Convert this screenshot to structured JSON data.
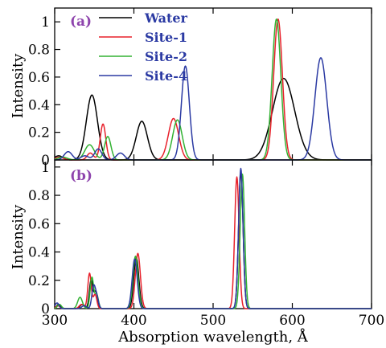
{
  "chart_data": [
    {
      "panel_label": "(a)",
      "type": "line",
      "title": "",
      "xlabel": "",
      "ylabel": "Intensity",
      "xlim": [
        300,
        700
      ],
      "ylim": [
        0,
        1.1
      ],
      "xticks": [
        300,
        400,
        500,
        600,
        700
      ],
      "yticks": [
        0,
        0.2,
        0.4,
        0.6,
        0.8,
        1
      ],
      "ytick_labels": [
        "0",
        "0.2",
        "0.4",
        "0.6",
        "0.8",
        "1"
      ],
      "show_x_tick_labels": false,
      "grid": false,
      "legend": {
        "position": "top-left",
        "entries": [
          "Water",
          "Site-1",
          "Site-2",
          "Site-4"
        ]
      },
      "series": [
        {
          "name": "Water",
          "color": "#000000",
          "peaks": [
            {
              "center": 305,
              "height": 0.03,
              "width": 5
            },
            {
              "center": 347,
              "height": 0.47,
              "width": 7
            },
            {
              "center": 410,
              "height": 0.28,
              "width": 7
            },
            {
              "center": 589,
              "height": 0.59,
              "width": 14
            }
          ]
        },
        {
          "name": "Site-1",
          "color": "#e8212b",
          "peaks": [
            {
              "center": 306,
              "height": 0.02,
              "width": 5
            },
            {
              "center": 345,
              "height": 0.05,
              "width": 4
            },
            {
              "center": 361,
              "height": 0.26,
              "width": 3.5
            },
            {
              "center": 450,
              "height": 0.3,
              "width": 6.5
            },
            {
              "center": 582,
              "height": 1.02,
              "width": 5.5
            }
          ]
        },
        {
          "name": "Site-2",
          "color": "#33b233",
          "peaks": [
            {
              "center": 310,
              "height": 0.02,
              "width": 6
            },
            {
              "center": 344,
              "height": 0.11,
              "width": 6
            },
            {
              "center": 367,
              "height": 0.17,
              "width": 4
            },
            {
              "center": 455,
              "height": 0.29,
              "width": 6
            },
            {
              "center": 580,
              "height": 1.02,
              "width": 5.5
            }
          ]
        },
        {
          "name": "Site-4",
          "color": "#2b3aa3",
          "peaks": [
            {
              "center": 317,
              "height": 0.06,
              "width": 5
            },
            {
              "center": 338,
              "height": 0.03,
              "width": 5
            },
            {
              "center": 355,
              "height": 0.08,
              "width": 4.5
            },
            {
              "center": 383,
              "height": 0.05,
              "width": 5
            },
            {
              "center": 465,
              "height": 0.68,
              "width": 5
            },
            {
              "center": 636,
              "height": 0.74,
              "width": 7.5
            }
          ]
        }
      ]
    },
    {
      "panel_label": "(b)",
      "type": "line",
      "title": "",
      "xlabel": "Absorption wavelength, Å",
      "ylabel": "Intensity",
      "xlim": [
        300,
        700
      ],
      "ylim": [
        0,
        1.05
      ],
      "xticks": [
        300,
        400,
        500,
        600,
        700
      ],
      "xtick_labels": [
        "300",
        "400",
        "500",
        "600",
        "700"
      ],
      "yticks": [
        0,
        0.2,
        0.4,
        0.6,
        0.8,
        1
      ],
      "ytick_labels": [
        "0",
        "0.2",
        "0.4",
        "0.6",
        "0.8",
        "1"
      ],
      "grid": false,
      "series": [
        {
          "name": "Water",
          "color": "#000000",
          "peaks": [
            {
              "center": 305,
              "height": 0.03,
              "width": 2.5
            },
            {
              "center": 335,
              "height": 0.03,
              "width": 3
            },
            {
              "center": 346,
              "height": 0.2,
              "width": 2.2
            },
            {
              "center": 352,
              "height": 0.12,
              "width": 2.2
            },
            {
              "center": 403,
              "height": 0.36,
              "width": 3.2
            },
            {
              "center": 535,
              "height": 0.97,
              "width": 2.8
            }
          ]
        },
        {
          "name": "Site-1",
          "color": "#e8212b",
          "peaks": [
            {
              "center": 304,
              "height": 0.02,
              "width": 2.5
            },
            {
              "center": 334,
              "height": 0.03,
              "width": 3
            },
            {
              "center": 344,
              "height": 0.25,
              "width": 2.2
            },
            {
              "center": 351,
              "height": 0.1,
              "width": 2.2
            },
            {
              "center": 405,
              "height": 0.39,
              "width": 3.2
            },
            {
              "center": 530,
              "height": 0.93,
              "width": 2.8
            }
          ]
        },
        {
          "name": "Site-2",
          "color": "#33b233",
          "peaks": [
            {
              "center": 306,
              "height": 0.03,
              "width": 2.5
            },
            {
              "center": 332,
              "height": 0.08,
              "width": 3
            },
            {
              "center": 347,
              "height": 0.22,
              "width": 2.2
            },
            {
              "center": 353,
              "height": 0.1,
              "width": 2.2
            },
            {
              "center": 402,
              "height": 0.37,
              "width": 3.2
            },
            {
              "center": 537,
              "height": 0.95,
              "width": 2.8
            }
          ]
        },
        {
          "name": "Site-4",
          "color": "#2b3aa3",
          "peaks": [
            {
              "center": 303,
              "height": 0.04,
              "width": 2.5
            },
            {
              "center": 337,
              "height": 0.02,
              "width": 3
            },
            {
              "center": 349,
              "height": 0.15,
              "width": 2.2
            },
            {
              "center": 353,
              "height": 0.08,
              "width": 2.2
            },
            {
              "center": 401,
              "height": 0.35,
              "width": 3.2
            },
            {
              "center": 535,
              "height": 0.99,
              "width": 2.8
            }
          ]
        }
      ]
    }
  ]
}
